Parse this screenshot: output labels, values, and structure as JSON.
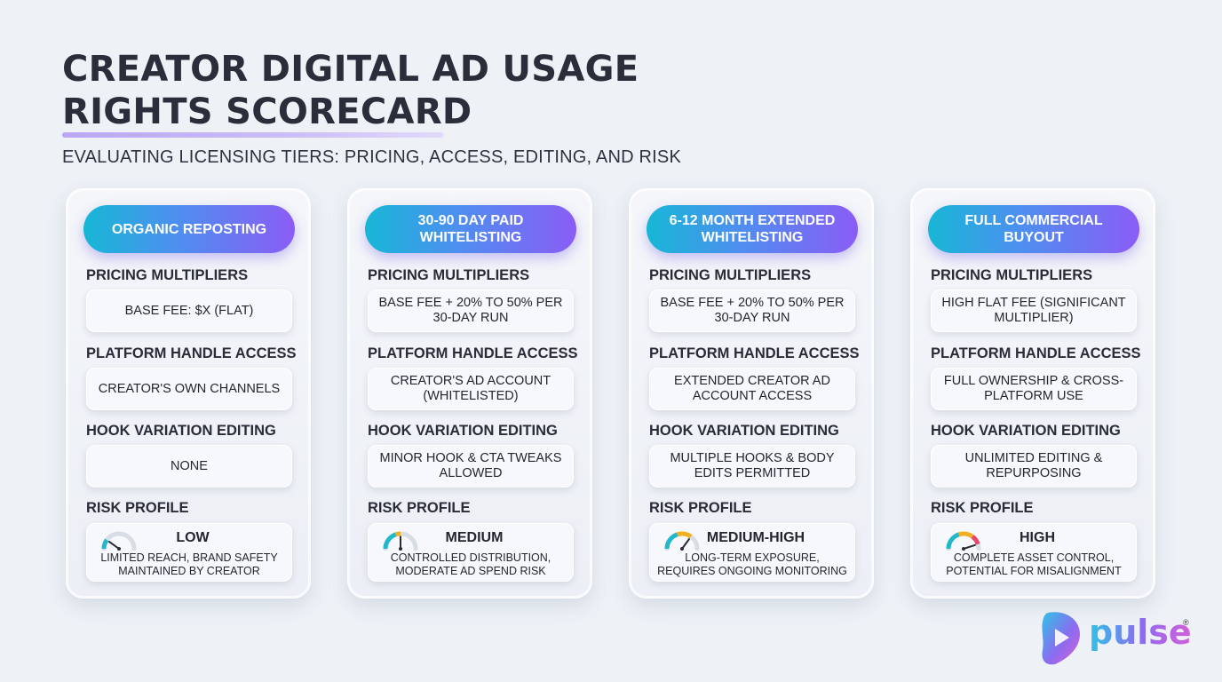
{
  "header": {
    "title_line1": "CREATOR DIGITAL AD USAGE",
    "title_line2": "RIGHTS SCORECARD",
    "subtitle": "EVALUATING LICENSING TIERS: PRICING, ACCESS, EDITING, AND RISK"
  },
  "section_labels": {
    "pricing": "PRICING MULTIPLIERS",
    "access": "PLATFORM HANDLE ACCESS",
    "editing": "HOOK VARIATION EDITING",
    "risk": "RISK PROFILE"
  },
  "tiers": [
    {
      "name": "ORGANIC REPOSTING",
      "pricing": "BASE FEE: $X (FLAT)",
      "access": "CREATOR'S OWN CHANNELS",
      "editing": "NONE",
      "risk_level": "LOW",
      "risk_desc": "LIMITED REACH, BRAND SAFETY MAINTAINED BY CREATOR",
      "risk_gauge_fraction": 0.2
    },
    {
      "name": "30-90 DAY PAID WHITELISTING",
      "pricing": "BASE FEE + 20% TO 50% PER 30-DAY RUN",
      "access": "CREATOR'S AD ACCOUNT (WHITELISTED)",
      "editing": "MINOR HOOK & CTA TWEAKS ALLOWED",
      "risk_level": "MEDIUM",
      "risk_desc": "CONTROLLED DISTRIBUTION, MODERATE AD SPEND RISK",
      "risk_gauge_fraction": 0.5
    },
    {
      "name": "6-12 MONTH EXTENDED WHITELISTING",
      "pricing": "BASE FEE + 20% TO 50% PER 30-DAY RUN",
      "access": "EXTENDED CREATOR AD ACCOUNT ACCESS",
      "editing": "MULTIPLE HOOKS & BODY EDITS PERMITTED",
      "risk_level": "MEDIUM-HIGH",
      "risk_desc": "LONG-TERM EXPOSURE, REQUIRES ONGOING MONITORING",
      "risk_gauge_fraction": 0.7
    },
    {
      "name": "FULL COMMERCIAL BUYOUT",
      "pricing": "HIGH FLAT FEE (SIGNIFICANT MULTIPLIER)",
      "access": "FULL OWNERSHIP & CROSS-PLATFORM USE",
      "editing": "UNLIMITED EDITING & REPURPOSING",
      "risk_level": "HIGH",
      "risk_desc": "COMPLETE ASSET CONTROL, POTENTIAL FOR MISALIGNMENT",
      "risk_gauge_fraction": 0.9
    }
  ],
  "gauge_colors": {
    "low": "#22b8c9",
    "mid": "#f2b01e",
    "high": "#e6456a",
    "track": "#d8dce4"
  },
  "brand": {
    "name": "pulse",
    "reg_mark": "®",
    "colors": [
      "#2fc3e6",
      "#8b6cf0",
      "#d45fd8"
    ]
  }
}
